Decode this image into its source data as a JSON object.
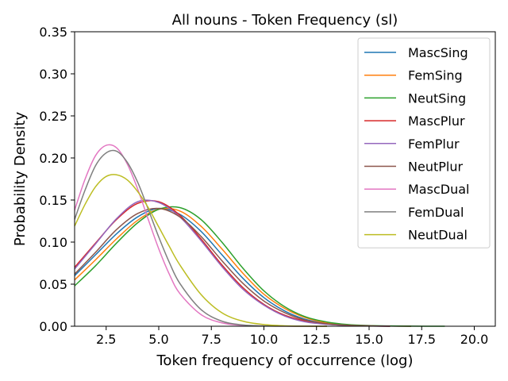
{
  "chart_data": {
    "type": "line",
    "title": "All nouns - Token Frequency (sl)",
    "xlabel": "Token frequency of occurrence (log)",
    "ylabel": "Probability Density",
    "xlim": [
      1.0,
      21.0
    ],
    "ylim": [
      0.0,
      0.35
    ],
    "x_ticks": [
      2.5,
      5.0,
      7.5,
      10.0,
      12.5,
      15.0,
      17.5,
      20.0
    ],
    "x_tick_labels": [
      "2.5",
      "5.0",
      "7.5",
      "10.0",
      "12.5",
      "15.0",
      "17.5",
      "20.0"
    ],
    "y_ticks": [
      0.0,
      0.05,
      0.1,
      0.15,
      0.2,
      0.25,
      0.3,
      0.35
    ],
    "y_tick_labels": [
      "0.00",
      "0.05",
      "0.10",
      "0.15",
      "0.20",
      "0.25",
      "0.30",
      "0.35"
    ],
    "grid": false,
    "legend_position": "upper right",
    "series": [
      {
        "name": "MascSing",
        "color": "#1f77b4",
        "x": [
          1.0,
          2.0,
          3.0,
          4.0,
          5.0,
          6.0,
          7.0,
          8.0,
          9.0,
          10.0,
          11.0,
          12.0,
          13.0,
          14.0,
          15.0,
          16.0,
          17.0
        ],
        "y": [
          0.06,
          0.085,
          0.11,
          0.13,
          0.14,
          0.133,
          0.113,
          0.085,
          0.057,
          0.034,
          0.018,
          0.008,
          0.003,
          0.0013,
          0.0005,
          0.0002,
          0.0
        ]
      },
      {
        "name": "FemSing",
        "color": "#ff7f0e",
        "x": [
          1.0,
          2.0,
          3.0,
          4.0,
          5.0,
          6.0,
          7.0,
          8.0,
          9.0,
          10.0,
          11.0,
          12.0,
          13.0,
          14.0,
          15.0,
          16.0,
          17.0
        ],
        "y": [
          0.055,
          0.079,
          0.104,
          0.126,
          0.139,
          0.137,
          0.119,
          0.092,
          0.063,
          0.038,
          0.021,
          0.01,
          0.004,
          0.0015,
          0.0005,
          0.0002,
          0.0
        ]
      },
      {
        "name": "NeutSing",
        "color": "#2ca02c",
        "x": [
          1.0,
          2.0,
          3.0,
          4.0,
          5.0,
          6.0,
          7.0,
          8.0,
          9.0,
          10.0,
          11.0,
          12.0,
          13.0,
          14.0,
          15.0,
          16.0,
          17.0,
          18.6
        ],
        "y": [
          0.048,
          0.072,
          0.099,
          0.123,
          0.139,
          0.141,
          0.127,
          0.1,
          0.069,
          0.042,
          0.023,
          0.011,
          0.005,
          0.002,
          0.0008,
          0.0003,
          0.0001,
          0.0
        ]
      },
      {
        "name": "MascPlur",
        "color": "#d62728",
        "x": [
          1.0,
          2.0,
          3.0,
          4.0,
          5.0,
          6.0,
          7.0,
          8.0,
          9.0,
          10.0,
          11.0,
          12.0,
          13.0,
          14.0,
          15.0,
          16.0
        ],
        "y": [
          0.07,
          0.099,
          0.127,
          0.146,
          0.148,
          0.132,
          0.104,
          0.073,
          0.046,
          0.026,
          0.013,
          0.006,
          0.0025,
          0.001,
          0.0004,
          0.0
        ]
      },
      {
        "name": "FemPlur",
        "color": "#9467bd",
        "x": [
          1.0,
          2.0,
          3.0,
          4.0,
          5.0,
          6.0,
          7.0,
          8.0,
          9.0,
          10.0,
          11.0,
          12.0,
          13.0,
          14.0,
          15.0,
          16.0
        ],
        "y": [
          0.068,
          0.098,
          0.128,
          0.148,
          0.147,
          0.13,
          0.102,
          0.071,
          0.044,
          0.025,
          0.012,
          0.005,
          0.0022,
          0.0009,
          0.0003,
          0.0
        ]
      },
      {
        "name": "NeutPlur",
        "color": "#8c564b",
        "x": [
          1.0,
          2.0,
          3.0,
          4.0,
          5.0,
          6.0,
          7.0,
          8.0,
          9.0,
          10.0,
          11.0,
          12.0,
          13.0,
          14.0,
          15.0,
          16.0
        ],
        "y": [
          0.062,
          0.088,
          0.115,
          0.134,
          0.14,
          0.13,
          0.107,
          0.078,
          0.051,
          0.03,
          0.016,
          0.007,
          0.003,
          0.0012,
          0.0004,
          0.0
        ]
      },
      {
        "name": "MascDual",
        "color": "#e377c2",
        "x": [
          1.0,
          1.5,
          2.0,
          2.5,
          3.0,
          3.5,
          4.0,
          4.5,
          5.0,
          5.5,
          6.0,
          7.0,
          8.0,
          9.0,
          10.0,
          11.0,
          12.0,
          13.0
        ],
        "y": [
          0.138,
          0.175,
          0.203,
          0.215,
          0.212,
          0.193,
          0.163,
          0.127,
          0.092,
          0.062,
          0.039,
          0.014,
          0.004,
          0.001,
          0.0003,
          0.0001,
          0.0,
          0.0
        ]
      },
      {
        "name": "FemDual",
        "color": "#7f7f7f",
        "x": [
          1.0,
          1.5,
          2.0,
          2.5,
          3.0,
          3.5,
          4.0,
          4.5,
          5.0,
          5.5,
          6.0,
          7.0,
          8.0,
          9.0,
          10.0,
          11.0,
          12.0,
          13.0
        ],
        "y": [
          0.127,
          0.162,
          0.191,
          0.206,
          0.208,
          0.195,
          0.171,
          0.139,
          0.106,
          0.076,
          0.051,
          0.02,
          0.006,
          0.0015,
          0.0004,
          0.0001,
          0.0,
          0.0
        ]
      },
      {
        "name": "NeutDual",
        "color": "#bcbd22",
        "x": [
          1.0,
          1.5,
          2.0,
          2.5,
          3.0,
          3.5,
          4.0,
          4.5,
          5.0,
          5.5,
          6.0,
          7.0,
          8.0,
          9.0,
          10.0,
          11.0,
          12.0,
          13.0
        ],
        "y": [
          0.119,
          0.145,
          0.166,
          0.178,
          0.18,
          0.174,
          0.16,
          0.141,
          0.118,
          0.095,
          0.073,
          0.038,
          0.016,
          0.006,
          0.002,
          0.0005,
          0.0001,
          0.0
        ]
      }
    ]
  }
}
